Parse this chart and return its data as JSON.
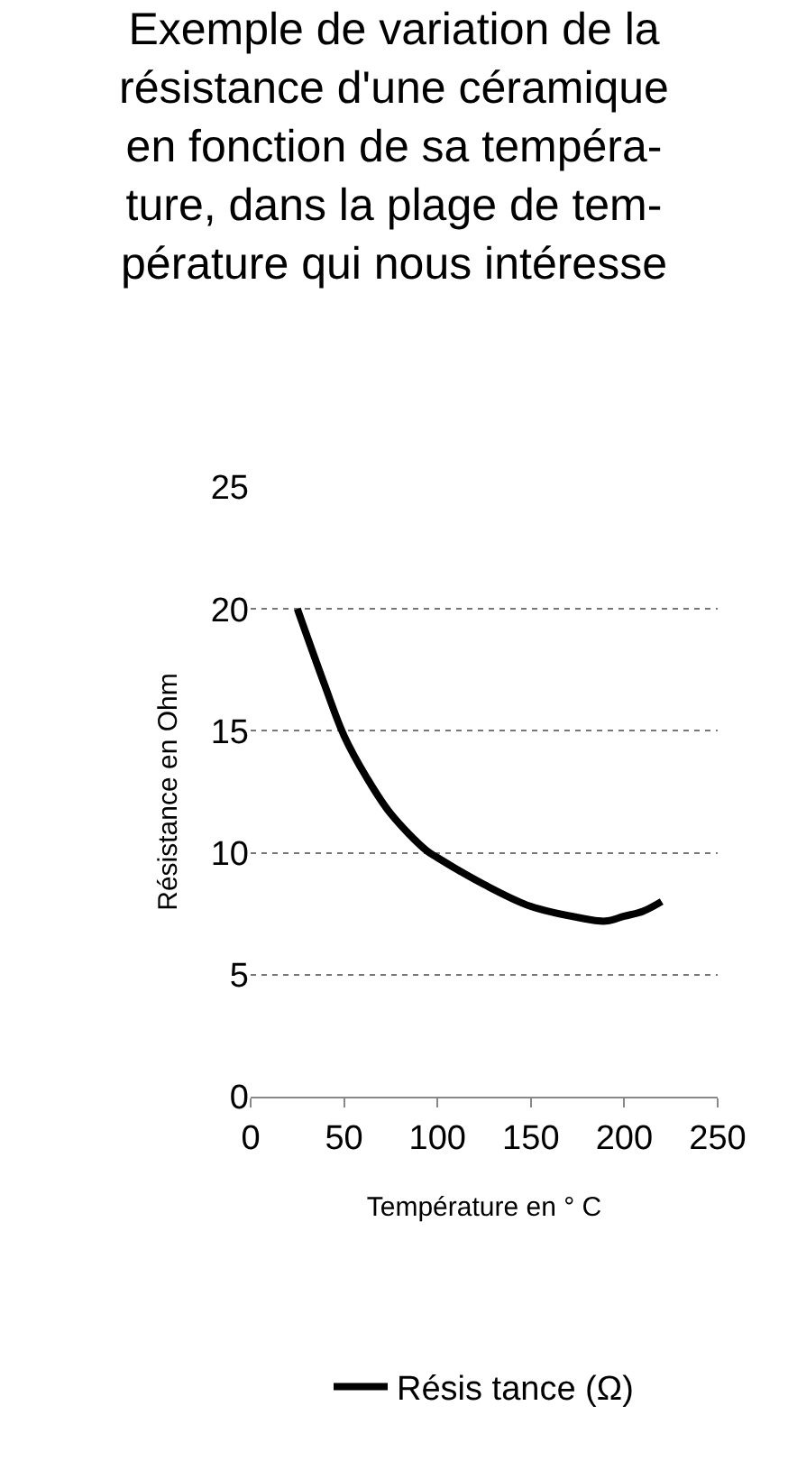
{
  "chart_data": {
    "type": "line",
    "title": "Exemple de variation de la\nrésistance d'une céramique\nen fonction de sa tempéra-\nture, dans la plage de tem-\npérature qui nous intéresse",
    "xlabel": "Température en ° C",
    "ylabel": "Résistance en Ohm",
    "series": [
      {
        "name": "Résis tance (Ω)",
        "color": "#000000",
        "x": [
          25,
          40,
          50,
          62,
          75,
          94,
          100,
          125,
          150,
          175,
          190,
          200,
          210,
          220
        ],
        "values": [
          20,
          16.8,
          14.8,
          13.1,
          11.6,
          10.1,
          9.8,
          8.7,
          7.8,
          7.35,
          7.2,
          7.4,
          7.6,
          8
        ]
      }
    ],
    "xlim": [
      0,
      250
    ],
    "xticks": [
      0,
      50,
      100,
      150,
      200,
      250
    ],
    "ylim": [
      0,
      25
    ],
    "yticks": [
      0,
      5,
      10,
      15,
      20,
      25
    ],
    "grid": "y",
    "legend": "bottom",
    "line_style": "solid",
    "marker": "none"
  }
}
